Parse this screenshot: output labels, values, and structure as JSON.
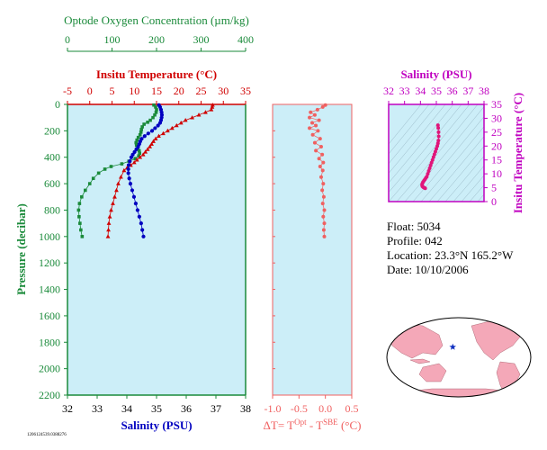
{
  "chart_data": [
    {
      "type": "scatter",
      "name": "profile",
      "y_label": "Pressure (decibar)",
      "y_ticks": [
        "0",
        "200",
        "400",
        "600",
        "800",
        "1000",
        "1200",
        "1400",
        "1600",
        "1800",
        "2000",
        "2200"
      ],
      "y_range": [
        0,
        2200
      ],
      "oxygen_axis": {
        "label": "Optode Oxygen Concentration (µm/kg)",
        "ticks": [
          "0",
          "100",
          "200",
          "300",
          "400"
        ],
        "range": [
          0,
          400
        ],
        "color": "#1a8a3a"
      },
      "temperature_axis": {
        "label": "Insitu Temperature (°C)",
        "ticks": [
          "-5",
          "0",
          "5",
          "10",
          "15",
          "20",
          "25",
          "30",
          "35"
        ],
        "range": [
          -5,
          35
        ],
        "color": "#d00000"
      },
      "salinity_axis": {
        "label": "Salinity (PSU)",
        "ticks": [
          "32",
          "33",
          "34",
          "35",
          "36",
          "37",
          "38"
        ],
        "range": [
          32,
          38
        ],
        "color": "#0000c0"
      },
      "series": [
        {
          "name": "Oxygen",
          "color": "#1a8a3a",
          "marker": "square",
          "points": [
            [
              194,
              5
            ],
            [
              198,
              20
            ],
            [
              200,
              40
            ],
            [
              199,
              60
            ],
            [
              196,
              80
            ],
            [
              192,
              100
            ],
            [
              186,
              120
            ],
            [
              180,
              135
            ],
            [
              172,
              150
            ],
            [
              168,
              170
            ],
            [
              166,
              190
            ],
            [
              165,
              210
            ],
            [
              163,
              230
            ],
            [
              159,
              250
            ],
            [
              156,
              270
            ],
            [
              154,
              290
            ],
            [
              155,
              310
            ],
            [
              158,
              330
            ],
            [
              161,
              350
            ],
            [
              162,
              370
            ],
            [
              160,
              390
            ],
            [
              152,
              410
            ],
            [
              138,
              430
            ],
            [
              122,
              450
            ],
            [
              98,
              470
            ],
            [
              84,
              490
            ],
            [
              70,
              520
            ],
            [
              58,
              560
            ],
            [
              50,
              600
            ],
            [
              40,
              650
            ],
            [
              32,
              700
            ],
            [
              27,
              750
            ],
            [
              25,
              800
            ],
            [
              26,
              850
            ],
            [
              28,
              900
            ],
            [
              30,
              950
            ],
            [
              33,
              1000
            ]
          ]
        },
        {
          "name": "Temperature",
          "color": "#d00000",
          "marker": "triangle",
          "points": [
            [
              27.6,
              5
            ],
            [
              27.5,
              20
            ],
            [
              27.3,
              40
            ],
            [
              26,
              60
            ],
            [
              24.5,
              80
            ],
            [
              23,
              100
            ],
            [
              21.5,
              120
            ],
            [
              20.5,
              140
            ],
            [
              19.5,
              160
            ],
            [
              18.5,
              180
            ],
            [
              17.5,
              200
            ],
            [
              16.5,
              220
            ],
            [
              15.5,
              240
            ],
            [
              14.8,
              260
            ],
            [
              14.3,
              280
            ],
            [
              13.9,
              300
            ],
            [
              13.5,
              320
            ],
            [
              13,
              340
            ],
            [
              12.5,
              360
            ],
            [
              12,
              380
            ],
            [
              11.3,
              400
            ],
            [
              10.6,
              420
            ],
            [
              10,
              440
            ],
            [
              9.2,
              460
            ],
            [
              8.4,
              480
            ],
            [
              7.7,
              500
            ],
            [
              7,
              550
            ],
            [
              6.4,
              600
            ],
            [
              6,
              650
            ],
            [
              5.6,
              700
            ],
            [
              5.2,
              750
            ],
            [
              4.8,
              800
            ],
            [
              4.5,
              850
            ],
            [
              4.3,
              900
            ],
            [
              4.2,
              950
            ],
            [
              4.1,
              1000
            ]
          ]
        },
        {
          "name": "Salinity",
          "color": "#0000c0",
          "marker": "circle",
          "points": [
            [
              35.08,
              5
            ],
            [
              35.12,
              20
            ],
            [
              35.15,
              40
            ],
            [
              35.17,
              60
            ],
            [
              35.18,
              80
            ],
            [
              35.17,
              100
            ],
            [
              35.15,
              120
            ],
            [
              35.12,
              140
            ],
            [
              35.05,
              160
            ],
            [
              34.95,
              180
            ],
            [
              34.85,
              200
            ],
            [
              34.72,
              220
            ],
            [
              34.6,
              240
            ],
            [
              34.5,
              260
            ],
            [
              34.45,
              280
            ],
            [
              34.42,
              300
            ],
            [
              34.38,
              320
            ],
            [
              34.32,
              340
            ],
            [
              34.26,
              360
            ],
            [
              34.2,
              380
            ],
            [
              34.15,
              400
            ],
            [
              34.1,
              430
            ],
            [
              34.06,
              460
            ],
            [
              34.05,
              490
            ],
            [
              34.05,
              520
            ],
            [
              34.08,
              560
            ],
            [
              34.12,
              600
            ],
            [
              34.18,
              650
            ],
            [
              34.24,
              700
            ],
            [
              34.3,
              750
            ],
            [
              34.36,
              800
            ],
            [
              34.42,
              850
            ],
            [
              34.48,
              900
            ],
            [
              34.52,
              950
            ],
            [
              34.56,
              1000
            ]
          ]
        }
      ]
    },
    {
      "type": "scatter",
      "name": "delta-t",
      "x_label_text": "ΔT= T",
      "x_label_sup1": "Opt",
      "x_label_mid": " - T",
      "x_label_sup2": "SBE",
      "x_label_unit": " (°C)",
      "x_ticks": [
        "-1.0",
        "-0.5",
        "0.0",
        "0.5"
      ],
      "x_range": [
        -1.0,
        0.5
      ],
      "y_range": [
        0,
        2200
      ],
      "color": "#f06060",
      "points": [
        [
          0.0,
          5
        ],
        [
          -0.05,
          20
        ],
        [
          -0.15,
          40
        ],
        [
          -0.28,
          60
        ],
        [
          -0.2,
          80
        ],
        [
          -0.3,
          100
        ],
        [
          -0.12,
          120
        ],
        [
          -0.25,
          140
        ],
        [
          -0.18,
          160
        ],
        [
          -0.3,
          180
        ],
        [
          -0.14,
          200
        ],
        [
          -0.24,
          230
        ],
        [
          -0.1,
          260
        ],
        [
          -0.2,
          290
        ],
        [
          -0.08,
          320
        ],
        [
          -0.18,
          350
        ],
        [
          -0.06,
          380
        ],
        [
          -0.12,
          410
        ],
        [
          -0.04,
          440
        ],
        [
          -0.1,
          470
        ],
        [
          -0.05,
          500
        ],
        [
          -0.08,
          550
        ],
        [
          -0.04,
          600
        ],
        [
          -0.06,
          650
        ],
        [
          -0.03,
          700
        ],
        [
          -0.05,
          750
        ],
        [
          -0.02,
          800
        ],
        [
          -0.04,
          850
        ],
        [
          -0.02,
          900
        ],
        [
          -0.03,
          950
        ],
        [
          -0.02,
          1000
        ]
      ]
    },
    {
      "type": "scatter",
      "name": "ts-diagram",
      "x_label": "Salinity (PSU)",
      "x_ticks": [
        "32",
        "33",
        "34",
        "35",
        "36",
        "37",
        "38"
      ],
      "x_range": [
        32,
        38
      ],
      "y_label": "Insitu Temperature (°C)",
      "y_ticks": [
        "0",
        "5",
        "10",
        "15",
        "20",
        "25",
        "30",
        "35"
      ],
      "y_range": [
        0,
        35
      ],
      "color": "#e0157a",
      "axis_color": "#c000c0",
      "points": [
        [
          35.1,
          27.5
        ],
        [
          35.12,
          26.5
        ],
        [
          35.14,
          25
        ],
        [
          35.15,
          23.5
        ],
        [
          35.13,
          22
        ],
        [
          35.1,
          21
        ],
        [
          35.06,
          20
        ],
        [
          35.0,
          19
        ],
        [
          34.94,
          18
        ],
        [
          34.88,
          17
        ],
        [
          34.82,
          16
        ],
        [
          34.76,
          15
        ],
        [
          34.7,
          14
        ],
        [
          34.64,
          13
        ],
        [
          34.58,
          12
        ],
        [
          34.52,
          11
        ],
        [
          34.46,
          10
        ],
        [
          34.4,
          9
        ],
        [
          34.34,
          8.5
        ],
        [
          34.28,
          8
        ],
        [
          34.22,
          7.5
        ],
        [
          34.16,
          7
        ],
        [
          34.12,
          6.5
        ],
        [
          34.1,
          6
        ],
        [
          34.12,
          5.5
        ],
        [
          34.18,
          5.2
        ],
        [
          34.24,
          5
        ],
        [
          34.3,
          4.8
        ]
      ]
    }
  ],
  "info": {
    "float": "Float:  5034",
    "profile": "Profile:  042",
    "location": "Location:  23.3°N  165.2°W",
    "date": "Date:  10/10/2006"
  },
  "footer_id": "1206124539.0388276",
  "map": {
    "ocean_color": "#ffffff",
    "land_color": "#f4a8b8",
    "marker_color": "#1030c0",
    "marker_lon": -165.2,
    "marker_lat": 23.3
  }
}
